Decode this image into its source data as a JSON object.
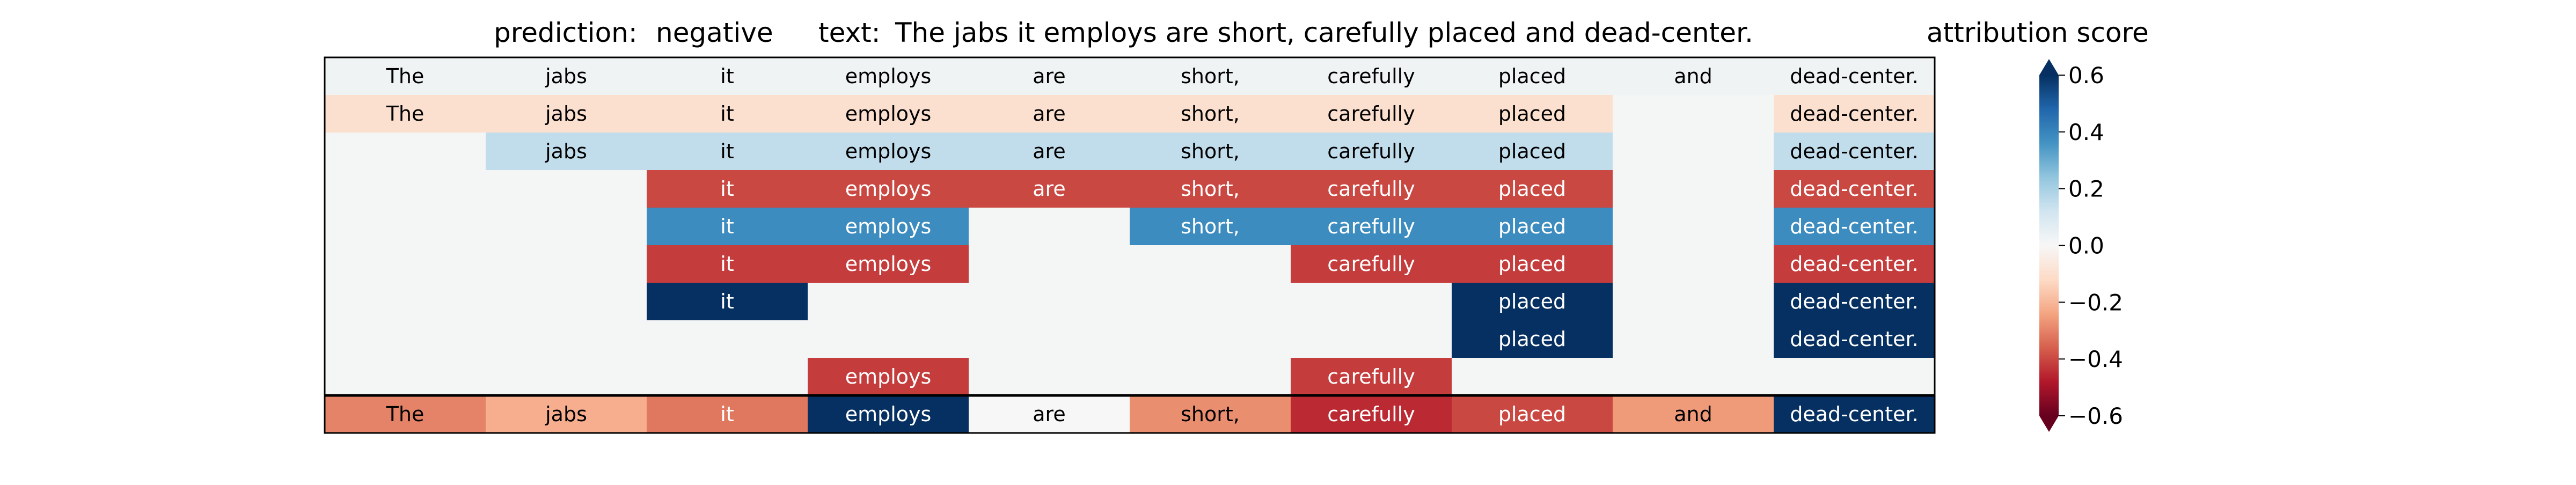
{
  "header": {
    "prediction_label": "prediction:",
    "prediction_value": "negative",
    "text_label": "text:",
    "text_value": "The jabs it employs are short, carefully placed and dead-center."
  },
  "colorbar": {
    "title": "attribution score",
    "ticks": [
      "0.6",
      "0.4",
      "0.2",
      "0.0",
      "−0.2",
      "−0.4",
      "−0.6"
    ],
    "tick_values": [
      0.6,
      0.4,
      0.2,
      0.0,
      -0.2,
      -0.4,
      -0.6
    ],
    "range": [
      -0.6,
      0.6
    ],
    "colormap": "RdBu",
    "extend": "both"
  },
  "chart_data": {
    "type": "heatmap",
    "title": "prediction:  negative     text:  The jabs it employs are short, carefully placed and dead-center.",
    "columns": [
      "The",
      "jabs",
      "it",
      "employs",
      "are",
      "short,",
      "carefully",
      "placed",
      "and",
      "dead-center."
    ],
    "note": "rows top-to-bottom; null = token absent (blank cell); last row is separated by a thick line",
    "rows": [
      [
        0.0,
        0.0,
        0.0,
        0.0,
        0.0,
        0.0,
        0.0,
        0.0,
        0.0,
        0.0
      ],
      [
        -0.1,
        -0.1,
        -0.1,
        -0.1,
        -0.1,
        -0.1,
        -0.1,
        -0.1,
        null,
        -0.1
      ],
      [
        null,
        0.15,
        0.15,
        0.15,
        0.15,
        0.15,
        0.15,
        0.15,
        null,
        0.15
      ],
      [
        null,
        null,
        -0.4,
        -0.4,
        -0.4,
        -0.4,
        -0.4,
        -0.4,
        null,
        -0.4
      ],
      [
        null,
        null,
        0.38,
        0.38,
        null,
        0.38,
        0.38,
        0.38,
        null,
        0.38
      ],
      [
        null,
        null,
        -0.42,
        -0.42,
        null,
        null,
        -0.42,
        -0.42,
        null,
        -0.42
      ],
      [
        null,
        null,
        0.65,
        null,
        null,
        null,
        null,
        0.65,
        null,
        0.65
      ],
      [
        null,
        null,
        null,
        null,
        null,
        null,
        null,
        0.65,
        null,
        0.65
      ],
      [
        null,
        null,
        null,
        -0.42,
        null,
        null,
        -0.42,
        null,
        null,
        null
      ],
      [
        -0.3,
        -0.22,
        -0.32,
        0.6,
        0.0,
        -0.28,
        -0.45,
        -0.4,
        -0.26,
        0.65
      ]
    ],
    "colorbar_range": [
      -0.6,
      0.6
    ]
  }
}
